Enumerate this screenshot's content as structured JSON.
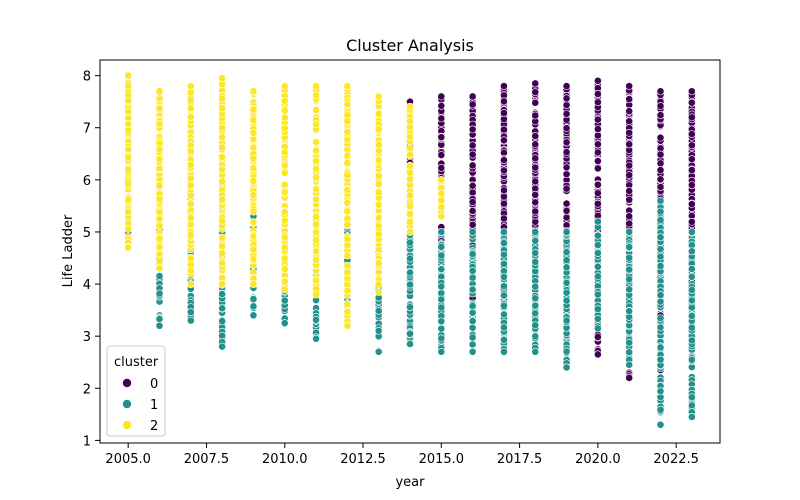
{
  "chart_data": {
    "type": "scatter",
    "title": "Cluster Analysis",
    "xlabel": "year",
    "ylabel": "Life Ladder",
    "xlim": [
      2004.1,
      2023.9
    ],
    "ylim": [
      0.95,
      8.3
    ],
    "x_ticks": [
      2005.0,
      2007.5,
      2010.0,
      2012.5,
      2015.0,
      2017.5,
      2020.0,
      2022.5
    ],
    "x_tick_labels": [
      "2005.0",
      "2007.5",
      "2010.0",
      "2012.5",
      "2015.0",
      "2017.5",
      "2020.0",
      "2022.5"
    ],
    "y_ticks": [
      1,
      2,
      3,
      4,
      5,
      6,
      7,
      8
    ],
    "y_tick_labels": [
      "1",
      "2",
      "3",
      "4",
      "5",
      "6",
      "7",
      "8"
    ],
    "grid": false,
    "legend": {
      "title": "cluster",
      "placement": "lower-left",
      "entries": [
        {
          "label": "0",
          "color": "#440154"
        },
        {
          "label": "1",
          "color": "#21918c"
        },
        {
          "label": "2",
          "color": "#fde725"
        }
      ]
    },
    "series": [
      {
        "name": "0",
        "color": "#440154",
        "ranges": [
          {
            "x": 2014,
            "min": 4.0,
            "max": 7.5
          },
          {
            "x": 2015,
            "min": 4.5,
            "max": 7.6
          },
          {
            "x": 2016,
            "min": 3.6,
            "max": 7.6
          },
          {
            "x": 2017,
            "min": 3.7,
            "max": 7.8
          },
          {
            "x": 2018,
            "min": 3.4,
            "max": 7.85
          },
          {
            "x": 2019,
            "min": 3.4,
            "max": 7.8
          },
          {
            "x": 2020,
            "min": 2.65,
            "max": 7.9
          },
          {
            "x": 2021,
            "min": 2.2,
            "max": 7.8
          },
          {
            "x": 2022,
            "min": 2.35,
            "max": 7.7
          },
          {
            "x": 2023,
            "min": 3.3,
            "max": 7.7
          }
        ],
        "points": [
          {
            "x": 2020,
            "y": 2.65
          },
          {
            "x": 2021,
            "y": 2.2
          },
          {
            "x": 2022,
            "y": 2.35
          },
          {
            "x": 2023,
            "y": 3.3
          },
          {
            "x": 2014,
            "y": 7.5
          },
          {
            "x": 2017,
            "y": 7.8
          },
          {
            "x": 2018,
            "y": 7.85
          },
          {
            "x": 2020,
            "y": 7.9
          }
        ]
      },
      {
        "name": "1",
        "color": "#21918c",
        "ranges": [
          {
            "x": 2005,
            "min": 5.0,
            "max": 5.3
          },
          {
            "x": 2006,
            "min": 3.2,
            "max": 5.3
          },
          {
            "x": 2007,
            "min": 3.3,
            "max": 6.0
          },
          {
            "x": 2008,
            "min": 2.8,
            "max": 5.3
          },
          {
            "x": 2009,
            "min": 3.4,
            "max": 5.3
          },
          {
            "x": 2010,
            "min": 3.25,
            "max": 5.2
          },
          {
            "x": 2011,
            "min": 2.95,
            "max": 5.0
          },
          {
            "x": 2012,
            "min": 3.3,
            "max": 5.1
          },
          {
            "x": 2013,
            "min": 2.7,
            "max": 5.25
          },
          {
            "x": 2014,
            "min": 2.85,
            "max": 5.5
          },
          {
            "x": 2015,
            "min": 2.7,
            "max": 5.0
          },
          {
            "x": 2016,
            "min": 2.7,
            "max": 5.0
          },
          {
            "x": 2017,
            "min": 2.7,
            "max": 5.0
          },
          {
            "x": 2018,
            "min": 2.7,
            "max": 5.0
          },
          {
            "x": 2019,
            "min": 2.4,
            "max": 5.0
          },
          {
            "x": 2020,
            "min": 3.15,
            "max": 5.2
          },
          {
            "x": 2021,
            "min": 2.45,
            "max": 5.0
          },
          {
            "x": 2022,
            "min": 1.3,
            "max": 5.6
          },
          {
            "x": 2023,
            "min": 1.45,
            "max": 5.0
          }
        ],
        "points": [
          {
            "x": 2008,
            "y": 2.8
          },
          {
            "x": 2011,
            "y": 2.95
          },
          {
            "x": 2013,
            "y": 2.7
          },
          {
            "x": 2019,
            "y": 2.4
          },
          {
            "x": 2021,
            "y": 2.45
          },
          {
            "x": 2022,
            "y": 1.3
          },
          {
            "x": 2022,
            "y": 2.55
          },
          {
            "x": 2023,
            "y": 1.45
          },
          {
            "x": 2007,
            "y": 6.0
          },
          {
            "x": 2020,
            "y": 3.8
          }
        ]
      },
      {
        "name": "2",
        "color": "#fde725",
        "ranges": [
          {
            "x": 2005,
            "min": 4.7,
            "max": 8.0
          },
          {
            "x": 2006,
            "min": 4.3,
            "max": 7.7
          },
          {
            "x": 2007,
            "min": 4.0,
            "max": 7.8
          },
          {
            "x": 2008,
            "min": 4.0,
            "max": 7.95
          },
          {
            "x": 2009,
            "min": 4.0,
            "max": 7.7
          },
          {
            "x": 2010,
            "min": 3.9,
            "max": 7.8
          },
          {
            "x": 2011,
            "min": 3.8,
            "max": 7.8
          },
          {
            "x": 2012,
            "min": 3.2,
            "max": 7.8
          },
          {
            "x": 2013,
            "min": 3.85,
            "max": 7.6
          },
          {
            "x": 2014,
            "min": 5.0,
            "max": 7.4
          },
          {
            "x": 2015,
            "min": 5.3,
            "max": 6.0
          }
        ],
        "points": [
          {
            "x": 2005,
            "y": 8.0
          },
          {
            "x": 2005,
            "y": 4.7
          },
          {
            "x": 2008,
            "y": 7.95
          },
          {
            "x": 2012,
            "y": 3.2
          }
        ]
      }
    ]
  }
}
